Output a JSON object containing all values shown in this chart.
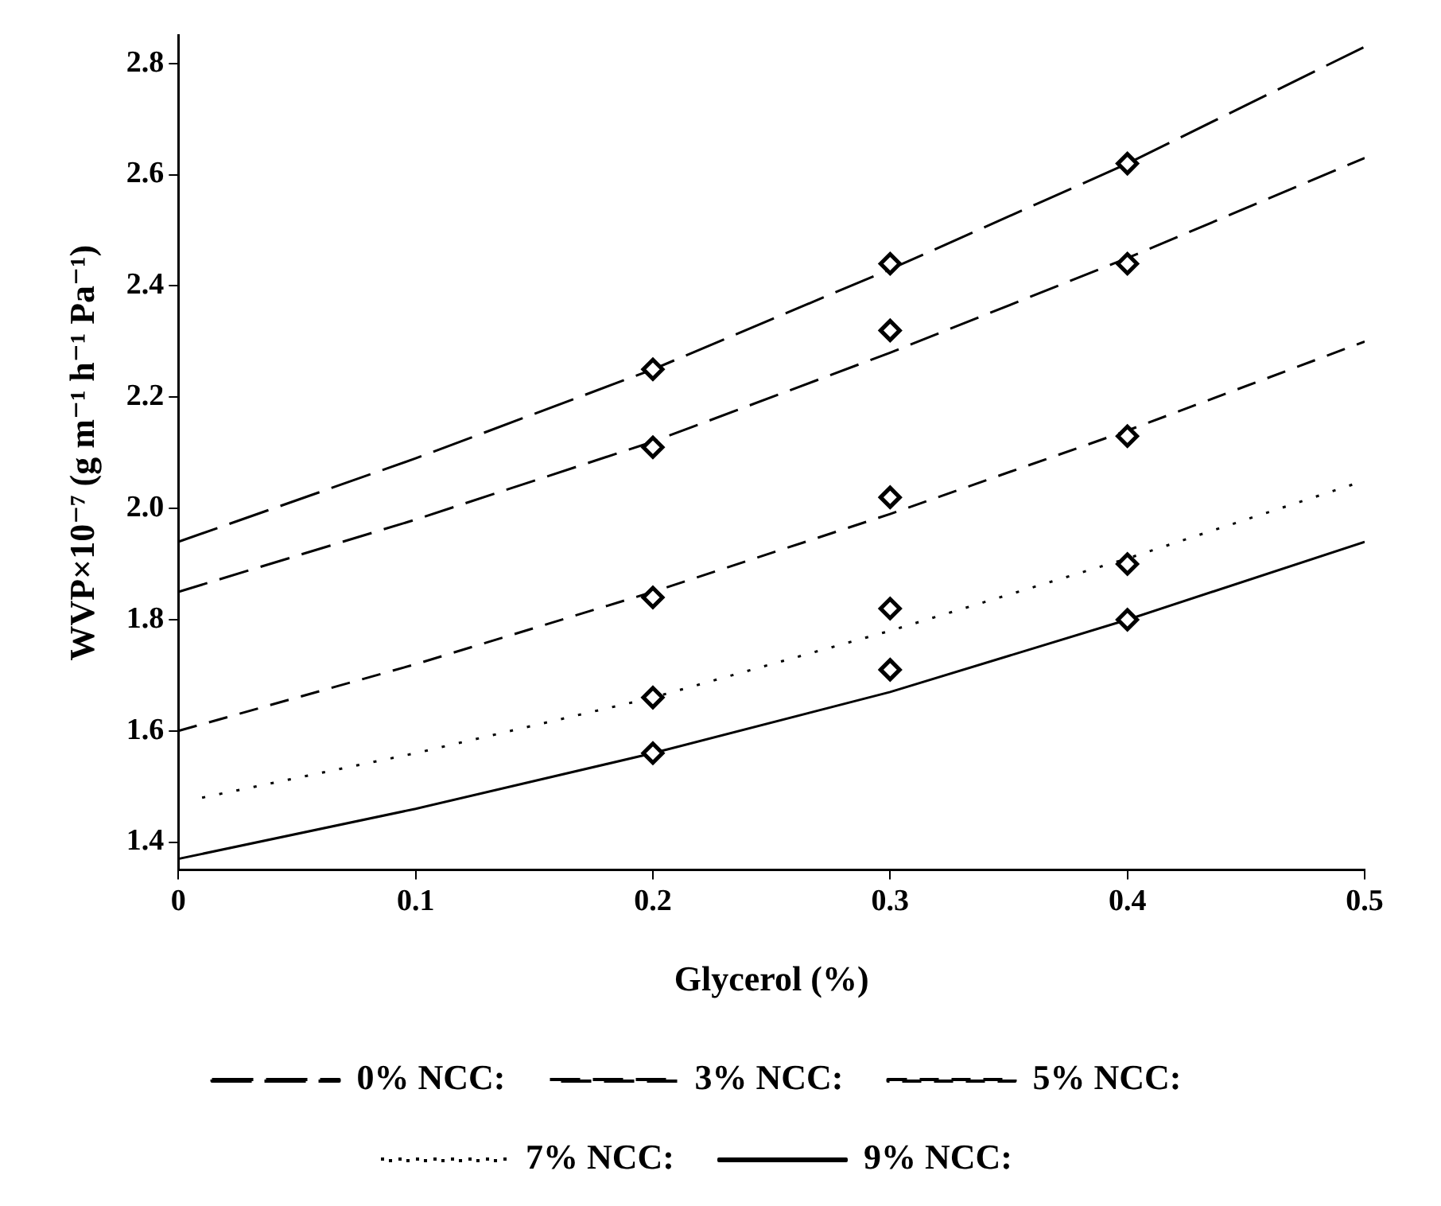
{
  "chart_data": {
    "type": "line",
    "xlabel": "Glycerol (%)",
    "ylabel": "WVP×10⁻⁷ (g m⁻¹ h⁻¹ Pa⁻¹)",
    "xlim": [
      0,
      0.5
    ],
    "xticks": [
      0,
      0.1,
      0.2,
      0.3,
      0.4,
      0.5
    ],
    "ylim": [
      1.35,
      2.85
    ],
    "yticks": [
      1.4,
      1.6,
      1.8,
      {
        "value": 2,
        "label": "2.0"
      },
      2.2,
      2.4,
      2.6,
      2.8
    ],
    "grid": false,
    "legend": "bottom",
    "series": [
      {
        "name": "0% NCC:",
        "type": "line",
        "color": "#000000",
        "line_style": "dashed",
        "marker": "none",
        "x": [
          0,
          0.1,
          0.2,
          0.3,
          0.4,
          0.5
        ],
        "values": [
          1.94,
          2.09,
          2.25,
          2.43,
          2.62,
          2.83
        ]
      },
      {
        "name": "3% NCC:",
        "type": "line",
        "color": "#000000",
        "line_style": "dashed",
        "marker": "none",
        "x": [
          0,
          0.1,
          0.2,
          0.3,
          0.4,
          0.5
        ],
        "values": [
          1.85,
          1.98,
          2.12,
          2.28,
          2.45,
          2.63
        ]
      },
      {
        "name": "5% NCC:",
        "type": "line",
        "color": "#000000",
        "line_style": "dashed",
        "marker": "none",
        "x": [
          0,
          0.1,
          0.2,
          0.3,
          0.4,
          0.5
        ],
        "values": [
          1.6,
          1.72,
          1.85,
          1.99,
          2.14,
          2.3
        ]
      },
      {
        "name": "7% NCC:",
        "type": "line",
        "color": "#000000",
        "line_style": "dotted",
        "marker": "none",
        "x": [
          0.01,
          0.1,
          0.2,
          0.3,
          0.4,
          0.5
        ],
        "values": [
          1.48,
          1.56,
          1.66,
          1.78,
          1.91,
          2.05
        ]
      },
      {
        "name": "9% NCC:",
        "type": "line",
        "color": "#000000",
        "line_style": "solid",
        "marker": "none",
        "x": [
          0,
          0.1,
          0.2,
          0.3,
          0.4,
          0.5
        ],
        "values": [
          1.37,
          1.46,
          1.56,
          1.67,
          1.8,
          1.94
        ]
      },
      {
        "type": "scatter",
        "color": "#000000",
        "marker": "diamond",
        "x": [
          0.2,
          0.3,
          0.4,
          0.2,
          0.3,
          0.4,
          0.2,
          0.3,
          0.4,
          0.2,
          0.3,
          0.4,
          0.2,
          0.3,
          0.4
        ],
        "values": [
          2.25,
          2.44,
          2.62,
          2.11,
          2.32,
          2.44,
          1.84,
          2.02,
          2.13,
          1.66,
          1.82,
          1.9,
          1.56,
          1.71,
          1.8
        ]
      }
    ]
  }
}
